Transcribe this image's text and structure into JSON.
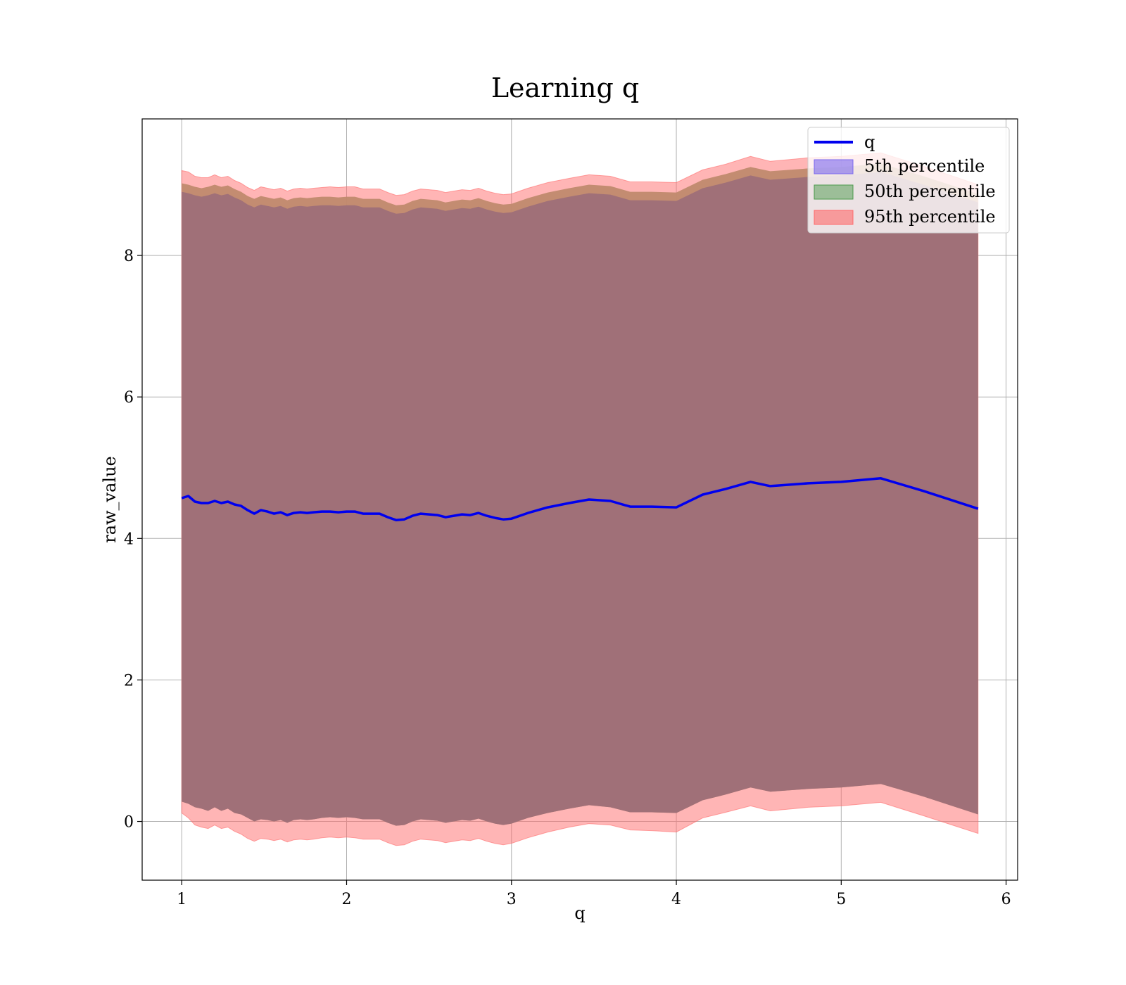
{
  "chart_data": {
    "type": "area",
    "title": "Learning q",
    "xlabel": "q",
    "ylabel": "raw_value",
    "xlim": [
      0.76,
      6.07
    ],
    "ylim": [
      -0.83,
      9.93
    ],
    "xticks": [
      1,
      2,
      3,
      4,
      5,
      6
    ],
    "xtick_labels": [
      "1",
      "2",
      "3",
      "4",
      "5",
      "6"
    ],
    "yticks": [
      0,
      2,
      4,
      6,
      8
    ],
    "ytick_labels": [
      "0",
      "2",
      "4",
      "6",
      "8"
    ],
    "grid": true,
    "legend_position": "top-right",
    "legend": [
      "q",
      "5th percentile",
      "50th percentile",
      "95th percentile"
    ],
    "colors": {
      "q": "#0000ee",
      "p5": "#7b68ee",
      "p50": "#4c9a4c",
      "p95": "#ff6b6b",
      "overlap": "#a07078"
    },
    "x": [
      1.0,
      1.04,
      1.08,
      1.12,
      1.16,
      1.2,
      1.24,
      1.28,
      1.32,
      1.36,
      1.4,
      1.44,
      1.48,
      1.52,
      1.56,
      1.6,
      1.64,
      1.68,
      1.72,
      1.76,
      1.8,
      1.85,
      1.9,
      1.95,
      2.0,
      2.05,
      2.1,
      2.15,
      2.2,
      2.25,
      2.3,
      2.35,
      2.4,
      2.45,
      2.5,
      2.55,
      2.6,
      2.65,
      2.7,
      2.75,
      2.8,
      2.85,
      2.9,
      2.95,
      3.0,
      3.1,
      3.22,
      3.35,
      3.47,
      3.6,
      3.72,
      3.85,
      4.0,
      4.16,
      4.3,
      4.45,
      4.57,
      4.8,
      5.0,
      5.24,
      5.5,
      5.83
    ],
    "series": [
      {
        "name": "q",
        "values": [
          4.57,
          4.6,
          4.52,
          4.5,
          4.5,
          4.53,
          4.5,
          4.52,
          4.48,
          4.46,
          4.4,
          4.35,
          4.4,
          4.38,
          4.35,
          4.37,
          4.33,
          4.36,
          4.37,
          4.36,
          4.37,
          4.38,
          4.38,
          4.37,
          4.38,
          4.38,
          4.35,
          4.35,
          4.35,
          4.3,
          4.26,
          4.27,
          4.32,
          4.35,
          4.34,
          4.33,
          4.3,
          4.32,
          4.34,
          4.33,
          4.36,
          4.32,
          4.29,
          4.27,
          4.28,
          4.36,
          4.44,
          4.5,
          4.55,
          4.53,
          4.45,
          4.45,
          4.44,
          4.62,
          4.7,
          4.8,
          4.74,
          4.78,
          4.8,
          4.85,
          4.67,
          4.42
        ]
      },
      {
        "name": "5th percentile",
        "lower": [
          0.28,
          0.25,
          0.2,
          0.18,
          0.15,
          0.2,
          0.15,
          0.18,
          0.12,
          0.1,
          0.05,
          0.0,
          0.03,
          0.02,
          0.0,
          0.02,
          -0.02,
          0.02,
          0.03,
          0.02,
          0.03,
          0.05,
          0.06,
          0.05,
          0.06,
          0.05,
          0.03,
          0.03,
          0.03,
          -0.02,
          -0.06,
          -0.05,
          0.0,
          0.03,
          0.02,
          0.01,
          -0.02,
          0.0,
          0.02,
          0.01,
          0.04,
          0.0,
          -0.03,
          -0.05,
          -0.03,
          0.05,
          0.12,
          0.18,
          0.23,
          0.2,
          0.13,
          0.13,
          0.12,
          0.3,
          0.38,
          0.48,
          0.42,
          0.46,
          0.48,
          0.53,
          0.35,
          0.1
        ],
        "upper": [
          8.9,
          8.88,
          8.85,
          8.83,
          8.85,
          8.88,
          8.85,
          8.87,
          8.82,
          8.78,
          8.72,
          8.68,
          8.72,
          8.7,
          8.68,
          8.7,
          8.66,
          8.69,
          8.7,
          8.69,
          8.7,
          8.71,
          8.71,
          8.7,
          8.71,
          8.71,
          8.68,
          8.68,
          8.68,
          8.63,
          8.59,
          8.6,
          8.65,
          8.68,
          8.67,
          8.66,
          8.63,
          8.65,
          8.67,
          8.66,
          8.69,
          8.65,
          8.62,
          8.6,
          8.61,
          8.69,
          8.77,
          8.83,
          8.88,
          8.86,
          8.78,
          8.78,
          8.77,
          8.95,
          9.03,
          9.13,
          9.07,
          9.11,
          9.13,
          9.18,
          9.0,
          8.75
        ]
      },
      {
        "name": "50th percentile",
        "lower": [
          0.28,
          0.25,
          0.2,
          0.18,
          0.15,
          0.2,
          0.15,
          0.18,
          0.12,
          0.1,
          0.05,
          0.0,
          0.03,
          0.02,
          0.0,
          0.02,
          -0.02,
          0.02,
          0.03,
          0.02,
          0.03,
          0.05,
          0.06,
          0.05,
          0.06,
          0.05,
          0.03,
          0.03,
          0.03,
          -0.02,
          -0.06,
          -0.05,
          0.0,
          0.03,
          0.02,
          0.01,
          -0.02,
          0.0,
          0.02,
          0.01,
          0.04,
          0.0,
          -0.03,
          -0.05,
          -0.03,
          0.05,
          0.12,
          0.18,
          0.23,
          0.2,
          0.13,
          0.13,
          0.12,
          0.3,
          0.38,
          0.48,
          0.42,
          0.46,
          0.48,
          0.53,
          0.35,
          0.1
        ],
        "upper": [
          9.02,
          9.0,
          8.97,
          8.95,
          8.97,
          9.0,
          8.97,
          8.99,
          8.94,
          8.9,
          8.84,
          8.8,
          8.84,
          8.82,
          8.8,
          8.82,
          8.78,
          8.81,
          8.82,
          8.81,
          8.82,
          8.83,
          8.83,
          8.82,
          8.83,
          8.83,
          8.8,
          8.8,
          8.8,
          8.75,
          8.71,
          8.72,
          8.77,
          8.8,
          8.79,
          8.78,
          8.75,
          8.77,
          8.79,
          8.78,
          8.81,
          8.77,
          8.74,
          8.72,
          8.73,
          8.81,
          8.89,
          8.95,
          9.0,
          8.98,
          8.9,
          8.9,
          8.89,
          9.07,
          9.15,
          9.25,
          9.19,
          9.23,
          9.25,
          9.3,
          9.12,
          8.87
        ]
      },
      {
        "name": "95th percentile",
        "lower": [
          0.12,
          0.05,
          -0.05,
          -0.08,
          -0.1,
          -0.05,
          -0.1,
          -0.08,
          -0.14,
          -0.18,
          -0.24,
          -0.28,
          -0.24,
          -0.25,
          -0.27,
          -0.25,
          -0.29,
          -0.26,
          -0.25,
          -0.26,
          -0.25,
          -0.23,
          -0.22,
          -0.23,
          -0.22,
          -0.23,
          -0.25,
          -0.25,
          -0.25,
          -0.3,
          -0.34,
          -0.33,
          -0.28,
          -0.25,
          -0.26,
          -0.27,
          -0.3,
          -0.28,
          -0.26,
          -0.27,
          -0.24,
          -0.28,
          -0.31,
          -0.33,
          -0.31,
          -0.23,
          -0.15,
          -0.08,
          -0.03,
          -0.05,
          -0.12,
          -0.13,
          -0.15,
          0.05,
          0.13,
          0.22,
          0.15,
          0.2,
          0.22,
          0.27,
          0.08,
          -0.17
        ],
        "upper": [
          9.2,
          9.18,
          9.12,
          9.1,
          9.1,
          9.14,
          9.1,
          9.12,
          9.06,
          9.02,
          8.96,
          8.92,
          8.97,
          8.95,
          8.93,
          8.95,
          8.91,
          8.94,
          8.95,
          8.94,
          8.95,
          8.96,
          8.97,
          8.96,
          8.97,
          8.97,
          8.94,
          8.94,
          8.94,
          8.89,
          8.85,
          8.86,
          8.91,
          8.94,
          8.93,
          8.92,
          8.89,
          8.91,
          8.93,
          8.92,
          8.95,
          8.91,
          8.88,
          8.86,
          8.87,
          8.95,
          9.03,
          9.09,
          9.14,
          9.12,
          9.04,
          9.04,
          9.03,
          9.21,
          9.29,
          9.4,
          9.33,
          9.38,
          9.4,
          9.45,
          9.26,
          9.0
        ]
      }
    ]
  }
}
